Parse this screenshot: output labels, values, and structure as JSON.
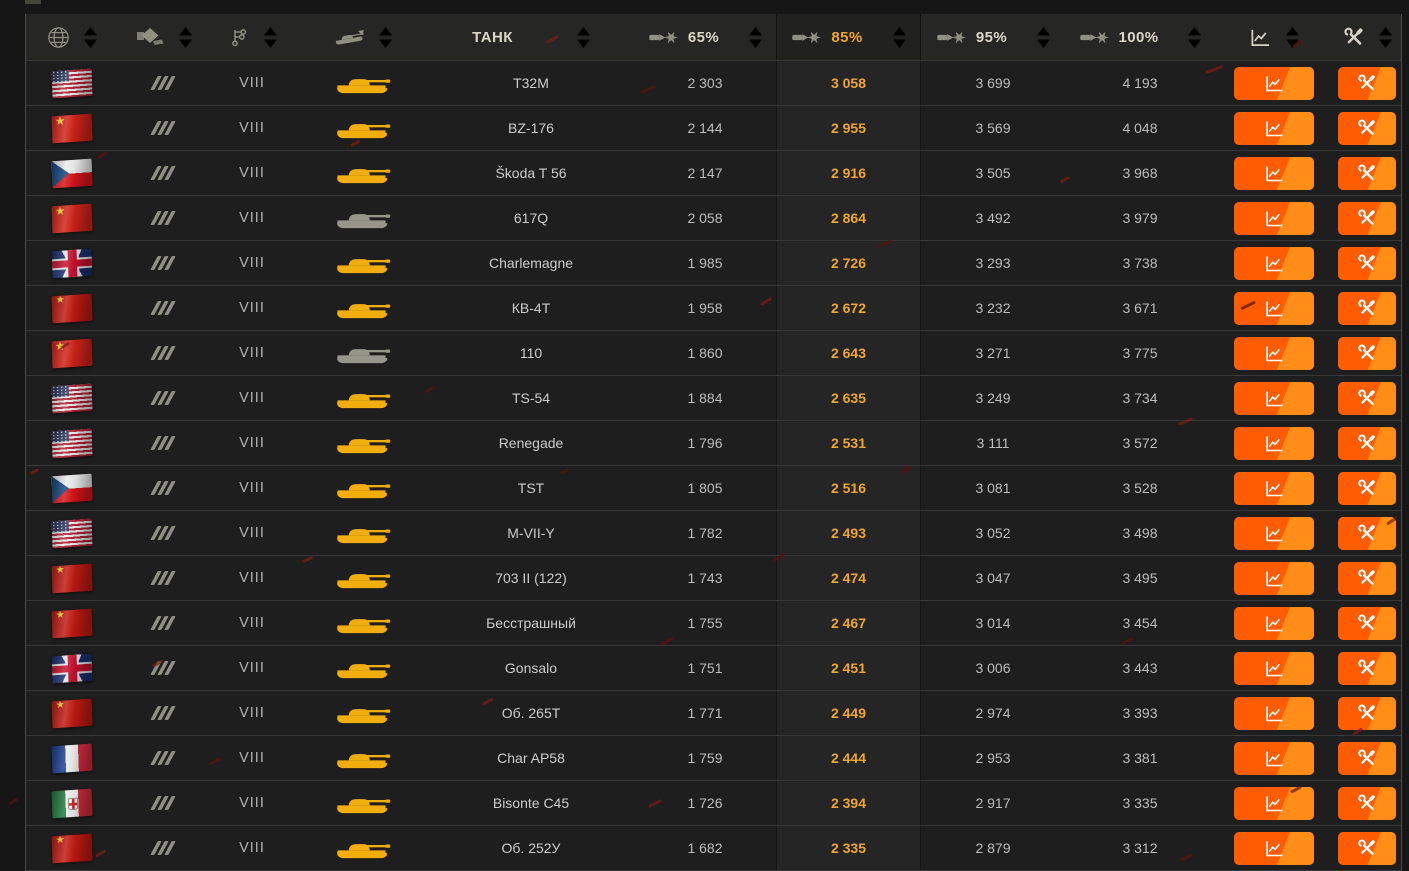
{
  "header": {
    "tank_label": "ТАНК",
    "dmg65_label": "65%",
    "dmg85_label": "85%",
    "dmg95_label": "95%",
    "dmg100_label": "100%",
    "sorted_by": "85%",
    "sort_direction": "descending",
    "icons": {
      "nation": "globe-icon",
      "vehicle_class": "tank-class-icon",
      "tier": "tech-tree-icon",
      "silhouette": "tank-icon",
      "damage_columns": "shell-penetration-icon",
      "stats": "line-chart-icon",
      "equipment": "crossed-tools-icon"
    }
  },
  "colors": {
    "accent_orange": "#ff5c04",
    "accent_orange_light": "#ff8d18",
    "highlight_value": "#f0a632",
    "premium_gold": "#f2ae0e",
    "regular_grey": "#97968a"
  },
  "table": {
    "rows": [
      {
        "nation": "usa",
        "vehicle_class": "heavy",
        "tier": "VIII",
        "name": "T32M",
        "silhouette": "gold",
        "dmg65": "2 303",
        "dmg85": "3 058",
        "dmg95": "3 699",
        "dmg100": "4 193"
      },
      {
        "nation": "china",
        "vehicle_class": "heavy",
        "tier": "VIII",
        "name": "BZ-176",
        "silhouette": "gold",
        "dmg65": "2 144",
        "dmg85": "2 955",
        "dmg95": "3 569",
        "dmg100": "4 048"
      },
      {
        "nation": "czech",
        "vehicle_class": "heavy",
        "tier": "VIII",
        "name": "Škoda T 56",
        "silhouette": "gold",
        "dmg65": "2 147",
        "dmg85": "2 916",
        "dmg95": "3 505",
        "dmg100": "3 968"
      },
      {
        "nation": "china",
        "vehicle_class": "heavy",
        "tier": "VIII",
        "name": "617Q",
        "silhouette": "grey",
        "dmg65": "2 058",
        "dmg85": "2 864",
        "dmg95": "3 492",
        "dmg100": "3 979"
      },
      {
        "nation": "uk",
        "vehicle_class": "heavy",
        "tier": "VIII",
        "name": "Charlemagne",
        "silhouette": "gold",
        "dmg65": "1 985",
        "dmg85": "2 726",
        "dmg95": "3 293",
        "dmg100": "3 738"
      },
      {
        "nation": "ussr",
        "vehicle_class": "heavy",
        "tier": "VIII",
        "name": "КВ-4Т",
        "silhouette": "gold",
        "dmg65": "1 958",
        "dmg85": "2 672",
        "dmg95": "3 232",
        "dmg100": "3 671"
      },
      {
        "nation": "china",
        "vehicle_class": "heavy",
        "tier": "VIII",
        "name": "110",
        "silhouette": "grey",
        "dmg65": "1 860",
        "dmg85": "2 643",
        "dmg95": "3 271",
        "dmg100": "3 775"
      },
      {
        "nation": "usa",
        "vehicle_class": "heavy",
        "tier": "VIII",
        "name": "TS-54",
        "silhouette": "gold",
        "dmg65": "1 884",
        "dmg85": "2 635",
        "dmg95": "3 249",
        "dmg100": "3 734"
      },
      {
        "nation": "usa",
        "vehicle_class": "heavy",
        "tier": "VIII",
        "name": "Renegade",
        "silhouette": "gold",
        "dmg65": "1 796",
        "dmg85": "2 531",
        "dmg95": "3 111",
        "dmg100": "3 572"
      },
      {
        "nation": "czech",
        "vehicle_class": "heavy",
        "tier": "VIII",
        "name": "TST",
        "silhouette": "gold",
        "dmg65": "1 805",
        "dmg85": "2 516",
        "dmg95": "3 081",
        "dmg100": "3 528"
      },
      {
        "nation": "usa",
        "vehicle_class": "heavy",
        "tier": "VIII",
        "name": "M-VII-Y",
        "silhouette": "gold",
        "dmg65": "1 782",
        "dmg85": "2 493",
        "dmg95": "3 052",
        "dmg100": "3 498"
      },
      {
        "nation": "ussr",
        "vehicle_class": "heavy",
        "tier": "VIII",
        "name": "703 II (122)",
        "silhouette": "gold",
        "dmg65": "1 743",
        "dmg85": "2 474",
        "dmg95": "3 047",
        "dmg100": "3 495"
      },
      {
        "nation": "ussr",
        "vehicle_class": "heavy",
        "tier": "VIII",
        "name": "Бесстрашный",
        "silhouette": "gold",
        "dmg65": "1 755",
        "dmg85": "2 467",
        "dmg95": "3 014",
        "dmg100": "3 454"
      },
      {
        "nation": "uk",
        "vehicle_class": "heavy",
        "tier": "VIII",
        "name": "Gonsalo",
        "silhouette": "gold",
        "dmg65": "1 751",
        "dmg85": "2 451",
        "dmg95": "3 006",
        "dmg100": "3 443"
      },
      {
        "nation": "ussr",
        "vehicle_class": "heavy",
        "tier": "VIII",
        "name": "Об. 265Т",
        "silhouette": "gold",
        "dmg65": "1 771",
        "dmg85": "2 449",
        "dmg95": "2 974",
        "dmg100": "3 393"
      },
      {
        "nation": "france",
        "vehicle_class": "heavy",
        "tier": "VIII",
        "name": "Char AP58",
        "silhouette": "gold",
        "dmg65": "1 759",
        "dmg85": "2 444",
        "dmg95": "2 953",
        "dmg100": "3 381"
      },
      {
        "nation": "italy",
        "vehicle_class": "heavy",
        "tier": "VIII",
        "name": "Bisonte C45",
        "silhouette": "gold",
        "dmg65": "1 726",
        "dmg85": "2 394",
        "dmg95": "2 917",
        "dmg100": "3 335"
      },
      {
        "nation": "ussr",
        "vehicle_class": "heavy",
        "tier": "VIII",
        "name": "Об. 252У",
        "silhouette": "gold",
        "dmg65": "1 682",
        "dmg85": "2 335",
        "dmg95": "2 879",
        "dmg100": "3 312"
      }
    ]
  }
}
